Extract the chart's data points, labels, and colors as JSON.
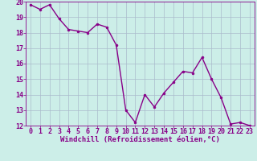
{
  "x": [
    0,
    1,
    2,
    3,
    4,
    5,
    6,
    7,
    8,
    9,
    10,
    11,
    12,
    13,
    14,
    15,
    16,
    17,
    18,
    19,
    20,
    21,
    22,
    23
  ],
  "y": [
    19.8,
    19.5,
    19.8,
    18.9,
    18.2,
    18.1,
    18.0,
    18.55,
    18.35,
    17.2,
    13.0,
    12.2,
    14.0,
    13.2,
    14.1,
    14.8,
    15.5,
    15.4,
    16.4,
    15.0,
    13.8,
    12.1,
    12.2,
    12.0
  ],
  "line_color": "#880088",
  "marker": "o",
  "marker_size": 2.0,
  "linewidth": 1.0,
  "ylim": [
    12,
    20
  ],
  "xlim_min": -0.5,
  "xlim_max": 23.5,
  "yticks": [
    12,
    13,
    14,
    15,
    16,
    17,
    18,
    19,
    20
  ],
  "xticks": [
    0,
    1,
    2,
    3,
    4,
    5,
    6,
    7,
    8,
    9,
    10,
    11,
    12,
    13,
    14,
    15,
    16,
    17,
    18,
    19,
    20,
    21,
    22,
    23
  ],
  "xlabel": "Windchill (Refroidissement éolien,°C)",
  "xlabel_fontsize": 6.5,
  "tick_fontsize": 6.0,
  "background_color": "#cceee8",
  "grid_color": "#aabbcc",
  "label_color": "#880088"
}
